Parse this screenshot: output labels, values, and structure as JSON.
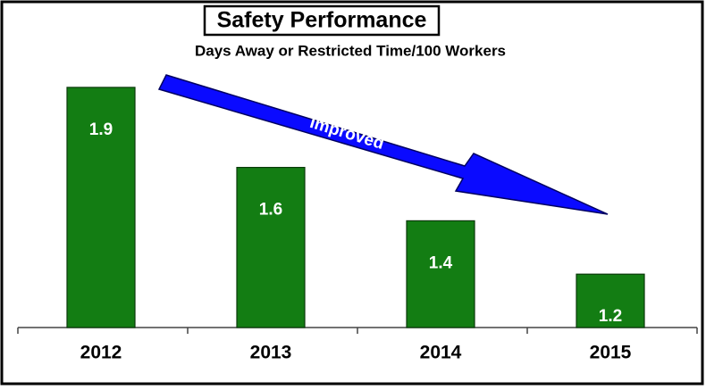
{
  "chart_data": {
    "type": "bar",
    "title": "Safety Performance",
    "subtitle": "Days Away or Restricted Time/100 Workers",
    "annotation": "Improved",
    "categories": [
      "2012",
      "2013",
      "2014",
      "2015"
    ],
    "values": [
      1.9,
      1.6,
      1.4,
      1.2
    ],
    "color": "#137d13",
    "ylim": [
      1,
      2
    ]
  }
}
